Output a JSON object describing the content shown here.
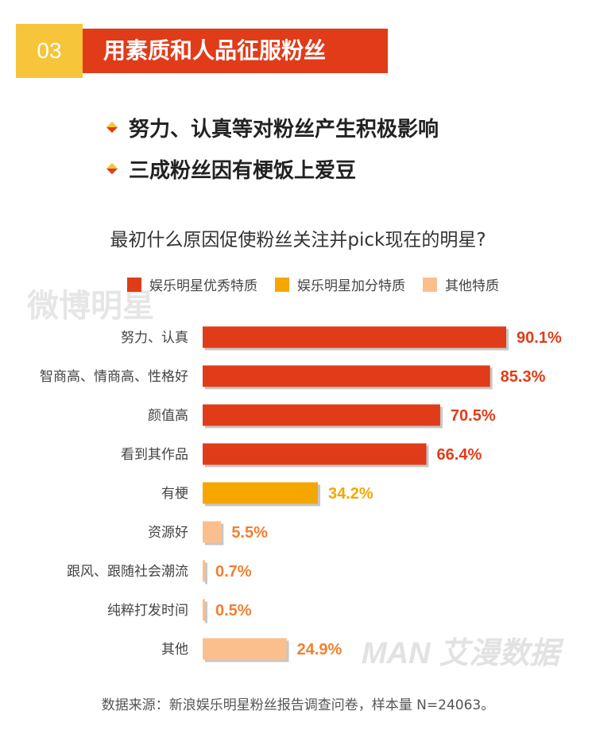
{
  "header": {
    "number": "03",
    "title": "用素质和人品征服粉丝"
  },
  "bullets": [
    "努力、认真等对粉丝产生积极影响",
    "三成粉丝因有梗饭上爱豆"
  ],
  "watermarks": {
    "weibo": "微博明星",
    "iman": "MAN 艾漫数据"
  },
  "chart_data": {
    "type": "bar",
    "orientation": "horizontal",
    "title": "最初什么原因促使粉丝关注并pick现在的明星?",
    "legend": [
      {
        "name": "娱乐明星优秀特质",
        "color": "#e03c1a"
      },
      {
        "name": "娱乐明星加分特质",
        "color": "#f5a700"
      },
      {
        "name": "其他特质",
        "color": "#fbbf8e"
      }
    ],
    "categories": [
      "努力、认真",
      "智商高、情商高、性格好",
      "颜值高",
      "看到其作品",
      "有梗",
      "资源好",
      "跟风、跟随社会潮流",
      "纯粹打发时间",
      "其他"
    ],
    "values": [
      90.1,
      85.3,
      70.5,
      66.4,
      34.2,
      5.5,
      0.7,
      0.5,
      24.9
    ],
    "value_labels": [
      "90.1%",
      "85.3%",
      "70.5%",
      "66.4%",
      "34.2%",
      "5.5%",
      "0.7%",
      "0.5%",
      "24.9%"
    ],
    "series_index": [
      0,
      0,
      0,
      0,
      1,
      2,
      2,
      2,
      2
    ],
    "label_colors": [
      "#e03c1a",
      "#f5a700",
      "#f08030"
    ]
  },
  "source": "数据来源：新浪娱乐明星粉丝报告调查问卷，样本量 N=24063。"
}
